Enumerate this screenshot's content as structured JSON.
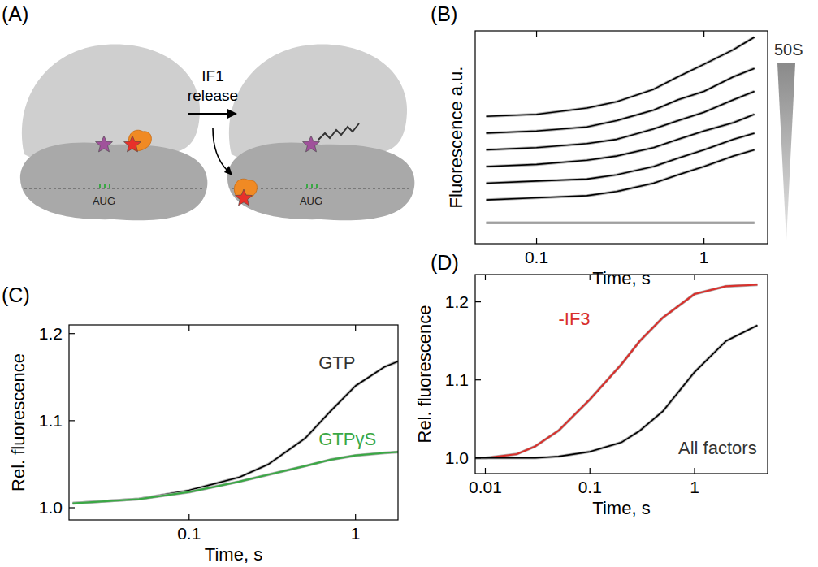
{
  "diagram": {
    "label": "(A)",
    "arrow_label": [
      "IF1",
      "release"
    ],
    "codon_labels": [
      "AUG",
      "AUG"
    ]
  },
  "chart_data": [
    {
      "type": "line",
      "panel": "(B)",
      "xlabel": "Time, s",
      "ylabel": "Fluorescence a.u.",
      "log": "x",
      "tick_labels": "x",
      "grid": false,
      "xlim": [
        0.043,
        2.4
      ],
      "xticks": [
        0.1,
        1
      ],
      "ylim": [
        0,
        10.2
      ],
      "yticks": [],
      "x": [
        0.05,
        0.1,
        0.2,
        0.3,
        0.5,
        0.7,
        1,
        1.5,
        2
      ],
      "series": [
        {
          "color": "#000000",
          "values": [
            6.1,
            6.2,
            6.5,
            6.8,
            7.4,
            8.0,
            8.6,
            9.3,
            9.9
          ]
        },
        {
          "color": "#000000",
          "values": [
            5.3,
            5.4,
            5.6,
            5.9,
            6.4,
            6.9,
            7.3,
            8.0,
            8.4
          ]
        },
        {
          "color": "#000000",
          "values": [
            4.5,
            4.6,
            4.8,
            5.0,
            5.5,
            5.9,
            6.3,
            6.9,
            7.3
          ]
        },
        {
          "color": "#000000",
          "values": [
            3.7,
            3.8,
            4.0,
            4.2,
            4.6,
            5.0,
            5.4,
            5.8,
            6.2
          ]
        },
        {
          "color": "#000000",
          "values": [
            2.9,
            3.0,
            3.1,
            3.3,
            3.7,
            4.1,
            4.5,
            5.0,
            5.3
          ]
        },
        {
          "color": "#000000",
          "values": [
            2.1,
            2.2,
            2.3,
            2.5,
            2.9,
            3.3,
            3.7,
            4.2,
            4.5
          ]
        },
        {
          "color": "#9a9a9a",
          "values": [
            1.0,
            1.0,
            1.0,
            1.0,
            1.0,
            1.0,
            1.0,
            1.0,
            1.0
          ]
        }
      ],
      "annotations": [
        {
          "text": "50S",
          "color": "#333333"
        }
      ]
    },
    {
      "type": "line",
      "panel": "(C)",
      "xlabel": "Time, s",
      "ylabel": "Rel. fluorescence",
      "log": "x",
      "grid": false,
      "xlim": [
        0.019,
        1.8
      ],
      "xticks": [
        0.1,
        1
      ],
      "ylim": [
        0.986,
        1.21
      ],
      "yticks": [
        {
          "value": 1,
          "label": "1.0"
        },
        {
          "value": 1.1,
          "label": "1.1"
        },
        {
          "value": 1.2,
          "label": "1.2"
        }
      ],
      "x": [
        0.02,
        0.05,
        0.1,
        0.2,
        0.3,
        0.5,
        0.7,
        1,
        1.5,
        1.8
      ],
      "series": [
        {
          "name": "GTP",
          "color": "#000000",
          "values": [
            1.005,
            1.01,
            1.02,
            1.035,
            1.05,
            1.08,
            1.11,
            1.14,
            1.162,
            1.168
          ]
        },
        {
          "name": "GTPγS",
          "color": "#3aa845",
          "values": [
            1.005,
            1.01,
            1.018,
            1.03,
            1.038,
            1.048,
            1.055,
            1.06,
            1.063,
            1.064
          ]
        }
      ],
      "annotations": [
        {
          "text": "GTP",
          "x": 0.6,
          "y": 1.16,
          "color": "#333333"
        },
        {
          "text": "GTPγS",
          "x": 0.6,
          "y": 1.072,
          "color": "#3aa845"
        }
      ]
    },
    {
      "type": "line",
      "panel": "(D)",
      "xlabel": "Time, s",
      "ylabel": "Rel. fluorescence",
      "log": "x",
      "grid": false,
      "xlim": [
        0.008,
        5
      ],
      "xticks": [
        0.01,
        0.1,
        1
      ],
      "ylim": [
        0.98,
        1.235
      ],
      "yticks": [
        {
          "value": 1,
          "label": "1.0"
        },
        {
          "value": 1.1,
          "label": "1.1"
        },
        {
          "value": 1.2,
          "label": "1.2"
        }
      ],
      "x": [
        0.008,
        0.01,
        0.02,
        0.03,
        0.05,
        0.1,
        0.2,
        0.3,
        0.5,
        1,
        2,
        4
      ],
      "series": [
        {
          "name": "-IF3",
          "color": "#d9302c",
          "values": [
            1.0,
            1.0,
            1.005,
            1.015,
            1.035,
            1.075,
            1.12,
            1.15,
            1.18,
            1.21,
            1.22,
            1.222
          ]
        },
        {
          "name": "All factors",
          "color": "#000000",
          "values": [
            1.0,
            1.0,
            1.0,
            1.0,
            1.002,
            1.008,
            1.02,
            1.035,
            1.06,
            1.11,
            1.15,
            1.17
          ]
        }
      ],
      "annotations": [
        {
          "text": "-IF3",
          "x": 0.05,
          "y": 1.17,
          "color": "#d9302c"
        },
        {
          "text": "All factors",
          "x": 0.7,
          "y": 1.005,
          "color": "#333333"
        }
      ]
    }
  ]
}
